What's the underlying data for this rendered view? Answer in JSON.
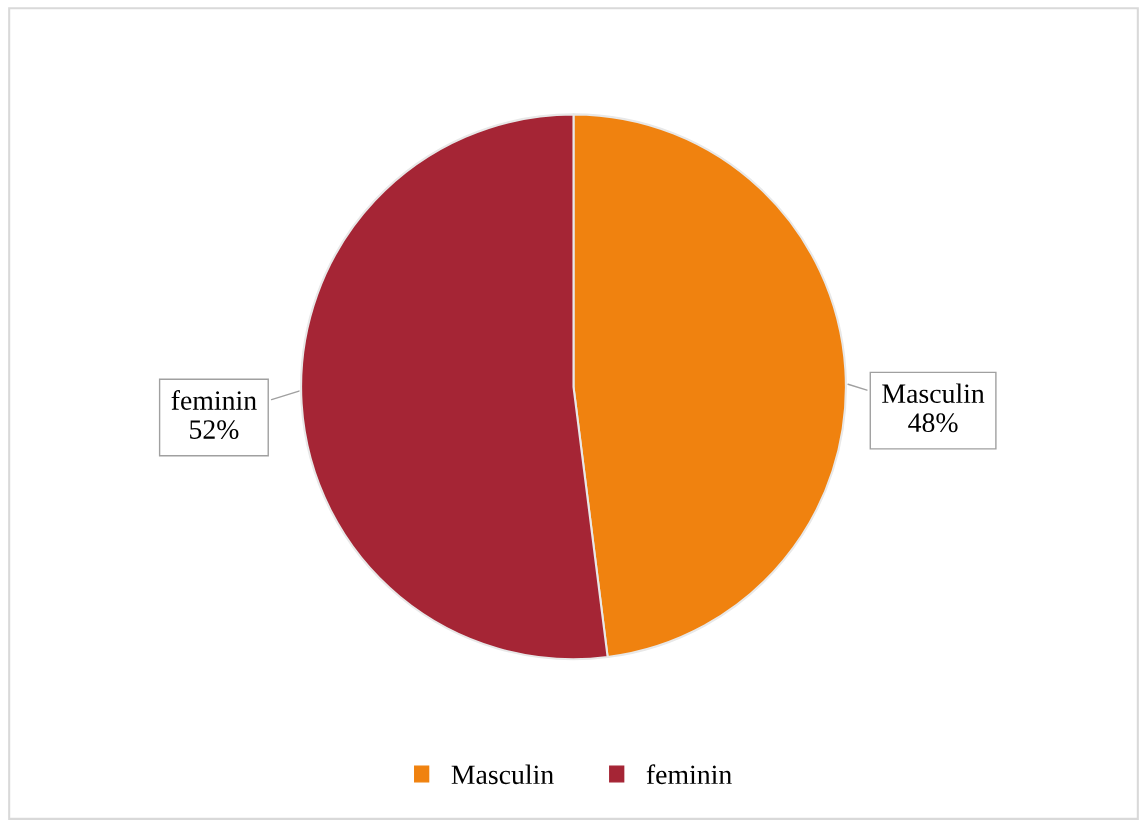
{
  "chart_data": {
    "type": "pie",
    "categories": [
      "Masculin",
      "feminin"
    ],
    "values": [
      48,
      52
    ],
    "colors": [
      "#f0820f",
      "#a52535"
    ],
    "value_labels": [
      "48%",
      "52%"
    ],
    "legend": "bottom"
  }
}
